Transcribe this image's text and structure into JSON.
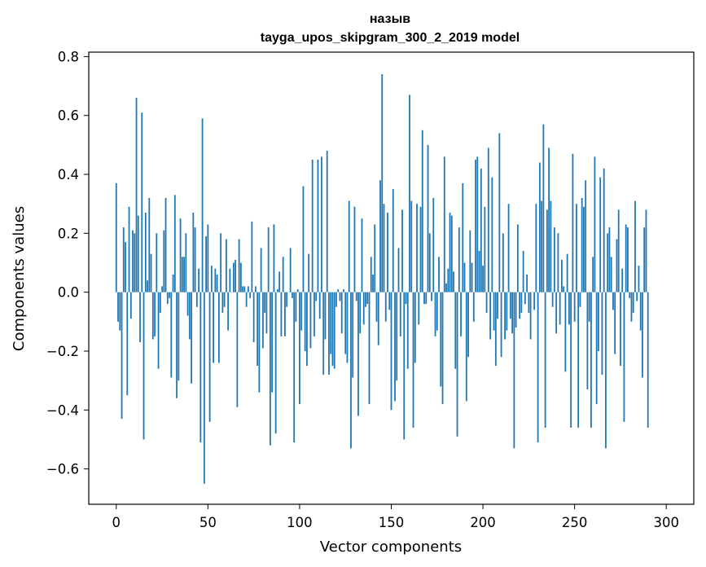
{
  "chart_data": {
    "type": "bar",
    "title_line1": "назыв",
    "title_line2": "tayga_upos_skipgram_300_2_2019 model",
    "xlabel": "Vector components",
    "ylabel": "Components values",
    "xlim": [
      -15,
      315
    ],
    "ylim": [
      -0.72,
      0.815
    ],
    "xticks": [
      0,
      50,
      100,
      150,
      200,
      250,
      300
    ],
    "yticks": [
      -0.6,
      -0.4,
      -0.2,
      0.0,
      0.2,
      0.4,
      0.6,
      0.8
    ],
    "ytick_labels": [
      "−0.6",
      "−0.4",
      "−0.2",
      "0.0",
      "0.2",
      "0.4",
      "0.6",
      "0.8"
    ],
    "xtick_labels": [
      "0",
      "50",
      "100",
      "150",
      "200",
      "250",
      "300"
    ],
    "bar_color": "#1f77b4",
    "values": [
      0.37,
      -0.1,
      -0.13,
      -0.43,
      0.22,
      0.17,
      -0.35,
      0.29,
      -0.09,
      0.21,
      0.2,
      0.66,
      0.26,
      -0.17,
      0.61,
      -0.5,
      0.27,
      0.04,
      0.32,
      0.13,
      -0.16,
      -0.15,
      0.2,
      -0.26,
      -0.07,
      0.02,
      0.21,
      0.32,
      -0.04,
      -0.02,
      -0.29,
      0.06,
      0.33,
      -0.36,
      -0.3,
      0.25,
      0.12,
      0.12,
      0.2,
      -0.08,
      -0.16,
      -0.31,
      0.27,
      0.22,
      -0.05,
      0.08,
      -0.51,
      0.59,
      -0.65,
      0.19,
      0.23,
      -0.44,
      0.09,
      -0.24,
      0.08,
      0.06,
      -0.24,
      0.2,
      -0.07,
      -0.05,
      0.18,
      -0.13,
      0.08,
      0.0,
      0.1,
      0.11,
      -0.39,
      0.18,
      0.1,
      0.02,
      0.02,
      -0.05,
      0.02,
      -0.02,
      0.24,
      -0.17,
      0.02,
      -0.25,
      -0.34,
      0.15,
      -0.19,
      -0.07,
      -0.14,
      0.22,
      -0.52,
      -0.34,
      0.23,
      -0.48,
      0.01,
      0.07,
      -0.15,
      0.12,
      -0.15,
      -0.05,
      0.0,
      0.15,
      -0.02,
      -0.51,
      -0.1,
      0.01,
      -0.38,
      -0.13,
      0.36,
      -0.2,
      -0.25,
      0.13,
      -0.19,
      0.45,
      -0.15,
      -0.03,
      0.45,
      -0.09,
      0.46,
      -0.28,
      -0.16,
      0.48,
      -0.28,
      -0.21,
      -0.25,
      -0.26,
      -0.05,
      0.01,
      -0.03,
      -0.14,
      0.01,
      -0.21,
      -0.24,
      0.31,
      -0.53,
      -0.29,
      0.29,
      -0.03,
      -0.42,
      -0.14,
      0.25,
      -0.11,
      -0.05,
      -0.04,
      -0.38,
      0.12,
      0.06,
      0.23,
      -0.1,
      -0.18,
      0.38,
      0.74,
      0.3,
      -0.1,
      0.27,
      -0.06,
      -0.4,
      0.35,
      -0.37,
      -0.3,
      0.15,
      -0.15,
      0.28,
      -0.5,
      -0.04,
      -0.26,
      0.67,
      0.31,
      -0.46,
      -0.24,
      0.3,
      -0.11,
      0.29,
      0.55,
      -0.04,
      -0.04,
      0.5,
      0.2,
      -0.03,
      0.32,
      -0.15,
      -0.13,
      0.12,
      -0.32,
      -0.38,
      0.46,
      0.03,
      0.08,
      0.27,
      0.26,
      0.07,
      -0.26,
      -0.49,
      0.22,
      -0.15,
      0.37,
      0.1,
      -0.37,
      -0.22,
      0.21,
      0.1,
      -0.1,
      0.45,
      0.46,
      0.14,
      0.42,
      0.09,
      0.29,
      -0.07,
      0.49,
      -0.16,
      0.39,
      -0.13,
      -0.25,
      -0.09,
      0.54,
      -0.22,
      0.2,
      -0.16,
      -0.13,
      0.3,
      -0.09,
      -0.14,
      -0.53,
      -0.12,
      0.23,
      -0.09,
      -0.07,
      0.14,
      -0.04,
      0.06,
      -0.07,
      -0.16,
      0.0,
      -0.06,
      0.3,
      -0.51,
      0.44,
      0.31,
      0.57,
      -0.46,
      0.28,
      0.49,
      0.31,
      -0.05,
      0.22,
      -0.14,
      0.2,
      -0.11,
      0.11,
      0.02,
      -0.27,
      0.13,
      -0.11,
      -0.46,
      0.47,
      -0.1,
      0.3,
      -0.46,
      -0.05,
      0.32,
      0.29,
      0.38,
      -0.33,
      -0.1,
      -0.46,
      0.12,
      0.46,
      -0.38,
      -0.2,
      0.39,
      -0.28,
      0.42,
      -0.53,
      0.2,
      0.22,
      0.12,
      -0.06,
      -0.21,
      0.18,
      0.28,
      -0.25,
      0.08,
      -0.44,
      0.23,
      0.22,
      -0.02,
      -0.1,
      -0.07,
      0.31,
      -0.03,
      0.09,
      -0.13,
      -0.29,
      0.22,
      0.28,
      -0.46
    ]
  }
}
